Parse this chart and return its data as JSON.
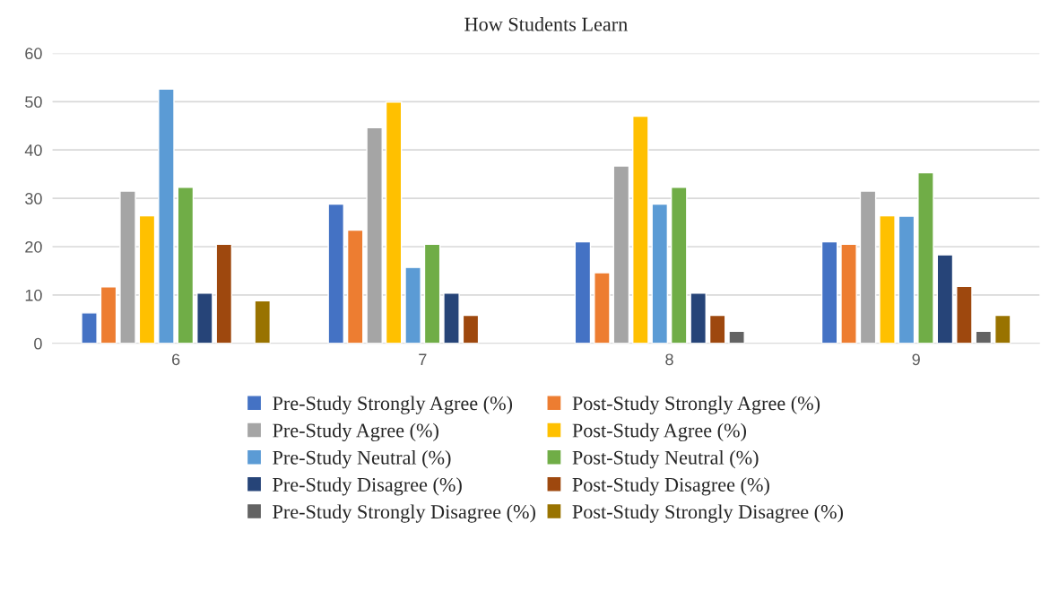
{
  "chart_data": {
    "type": "bar",
    "title": "How Students Learn",
    "categories": [
      "6",
      "7",
      "8",
      "9"
    ],
    "series": [
      {
        "name": "Pre-Study Strongly Agree (%)",
        "color": "#4472c4",
        "values": [
          6.3,
          28.8,
          21.0,
          21.0
        ]
      },
      {
        "name": "Post-Study Strongly Agree (%)",
        "color": "#ed7d31",
        "values": [
          11.7,
          23.4,
          14.6,
          20.5
        ]
      },
      {
        "name": "Pre-Study Agree (%)",
        "color": "#a5a5a5",
        "values": [
          31.5,
          44.6,
          36.7,
          31.5
        ]
      },
      {
        "name": "Post-Study Agree (%)",
        "color": "#ffc000",
        "values": [
          26.4,
          49.9,
          47.0,
          26.4
        ]
      },
      {
        "name": "Pre-Study Neutral (%)",
        "color": "#5b9bd5",
        "values": [
          52.6,
          15.7,
          28.8,
          26.3
        ]
      },
      {
        "name": "Post-Study Neutral (%)",
        "color": "#70ad47",
        "values": [
          32.3,
          20.5,
          32.3,
          35.3
        ]
      },
      {
        "name": "Pre-Study Disagree (%)",
        "color": "#264478",
        "values": [
          10.4,
          10.4,
          10.4,
          18.3
        ]
      },
      {
        "name": "Post-Study Disagree (%)",
        "color": "#9e480e",
        "values": [
          20.5,
          5.8,
          5.8,
          11.8
        ]
      },
      {
        "name": "Pre-Study Strongly Disagree (%)",
        "color": "#636363",
        "values": [
          null,
          null,
          2.5,
          2.5
        ]
      },
      {
        "name": "Post-Study Strongly Disagree (%)",
        "color": "#997300",
        "values": [
          8.8,
          null,
          null,
          5.8
        ]
      }
    ],
    "ylim": [
      0,
      60
    ],
    "yticks": [
      0,
      10,
      20,
      30,
      40,
      50,
      60
    ],
    "grid": "y",
    "legend": "bottom"
  }
}
